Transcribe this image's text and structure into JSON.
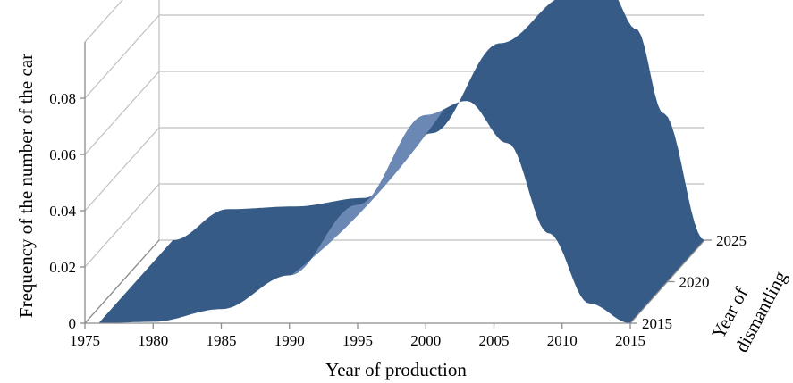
{
  "chart_data": {
    "type": "surface3d",
    "title": "",
    "xlabel": "Year of production",
    "ylabel": "Frequency of the number of the car",
    "zlabel_lines": [
      "Year of",
      "dismantling"
    ],
    "x_ticks": [
      "1975",
      "1980",
      "1985",
      "1990",
      "1995",
      "2000",
      "2005",
      "2010",
      "2015"
    ],
    "y_ticks": [
      "0",
      "0.02",
      "0.04",
      "0.06",
      "0.08"
    ],
    "z_ticks": [
      "2015",
      "2020",
      "2025"
    ],
    "x_range": [
      1975,
      2015
    ],
    "y_range": [
      0,
      0.1
    ],
    "z_range": [
      2015,
      2025
    ],
    "surface_color": "#365b87",
    "highlight_color": "#6a88b3",
    "front_profile": {
      "dismantling_year": 2015,
      "x": [
        1976,
        1980,
        1985,
        1990,
        1995,
        2000,
        2003,
        2006,
        2009,
        2012,
        2015
      ],
      "y": [
        0.0,
        0.0005,
        0.005,
        0.017,
        0.042,
        0.074,
        0.079,
        0.064,
        0.032,
        0.007,
        0.0
      ]
    },
    "back_profile": {
      "dismantling_year": 2025,
      "x": [
        1976,
        1980,
        1985,
        1990,
        1995,
        2000,
        2005,
        2008,
        2010,
        2012,
        2015
      ],
      "y": [
        0.0,
        0.011,
        0.012,
        0.015,
        0.038,
        0.07,
        0.087,
        0.089,
        0.075,
        0.045,
        0.0
      ]
    }
  }
}
